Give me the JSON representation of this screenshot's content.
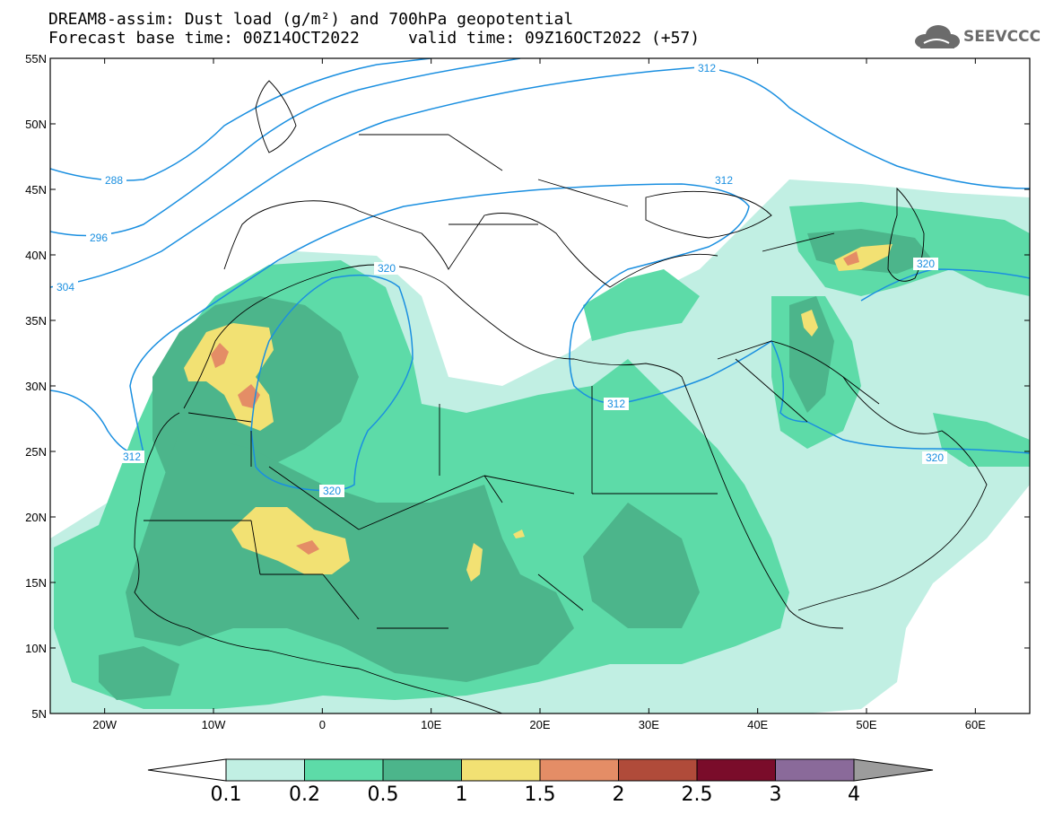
{
  "title": {
    "line1": "DREAM8-assim: Dust load (g/m²) and 700hPa geopotential",
    "line2": "Forecast base time: 00Z14OCT2022     valid time: 09Z16OCT2022 (+57)"
  },
  "logo": {
    "text": "SEEVCCC",
    "icon": "cloud-logo-icon"
  },
  "axes": {
    "lon_ticks": [
      "20W",
      "10W",
      "0",
      "10E",
      "20E",
      "30E",
      "40E",
      "50E",
      "60E"
    ],
    "lat_ticks": [
      "55N",
      "50N",
      "45N",
      "40N",
      "35N",
      "30N",
      "25N",
      "20N",
      "15N",
      "10N",
      "5N"
    ],
    "lon_range": [
      -25,
      65
    ],
    "lat_range": [
      5,
      55
    ]
  },
  "contour_labels": [
    "312",
    "312",
    "288",
    "296",
    "304",
    "320",
    "312",
    "320",
    "312",
    "320",
    "320"
  ],
  "colorbar": {
    "levels": [
      "0.1",
      "0.2",
      "0.5",
      "1",
      "1.5",
      "2",
      "2.5",
      "3",
      "4"
    ],
    "colors": [
      "#c1efe3",
      "#5ddba8",
      "#4cb58b",
      "#f2e173",
      "#e48d66",
      "#b04b3a",
      "#7a0c2a",
      "#8a6a9a",
      "#9c9c9c"
    ]
  },
  "colors": {
    "contour": "#1a8fe0",
    "border": "#000000"
  }
}
